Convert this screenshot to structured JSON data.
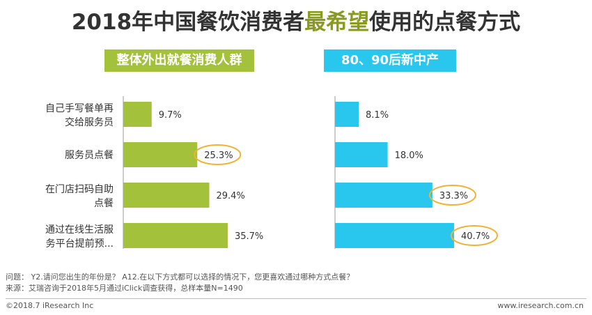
{
  "title": {
    "pre": "2018年中国餐饮消费者",
    "highlight": "最希望",
    "post": "使用的点餐方式"
  },
  "groups": {
    "left": "整体外出就餐消费人群",
    "right": "80、90后新中产"
  },
  "chart_data": {
    "type": "bar",
    "orientation": "horizontal",
    "title": "2018年中国餐饮消费者最希望使用的点餐方式",
    "categories": [
      {
        "line1": "自己手写餐单再",
        "line2": "交给服务员"
      },
      {
        "line1": "服务员点餐",
        "line2": ""
      },
      {
        "line1": "在门店扫码自助",
        "line2": "点餐"
      },
      {
        "line1": "通过在线生活服",
        "line2": "务平台提前预..."
      }
    ],
    "series": [
      {
        "name": "整体外出就餐消费人群",
        "values": [
          9.7,
          25.3,
          29.4,
          35.7
        ],
        "labels": [
          "9.7%",
          "25.3%",
          "29.4%",
          "35.7%"
        ],
        "highlight": [
          false,
          true,
          false,
          false
        ]
      },
      {
        "name": "80、90后新中产",
        "values": [
          8.1,
          18.0,
          33.3,
          40.7
        ],
        "labels": [
          "8.1%",
          "18.0%",
          "33.3%",
          "40.7%"
        ],
        "highlight": [
          false,
          false,
          true,
          true
        ]
      }
    ],
    "colors": {
      "left": "#a3c13a",
      "right": "#29c7ed",
      "circle": "#f2b233"
    },
    "xlim": [
      0,
      50
    ]
  },
  "footer": {
    "question": "问题： Y2.请问您出生的年份是？ A12.在以下方式都可以选择的情况下，您更喜欢通过哪种方式点餐？",
    "source": "来源：艾瑞咨询于2018年5月通过iClick调查获得，总样本量N=1490",
    "copyright": "©2018.7 iResearch Inc",
    "website": "www.iresearch.com.cn"
  }
}
